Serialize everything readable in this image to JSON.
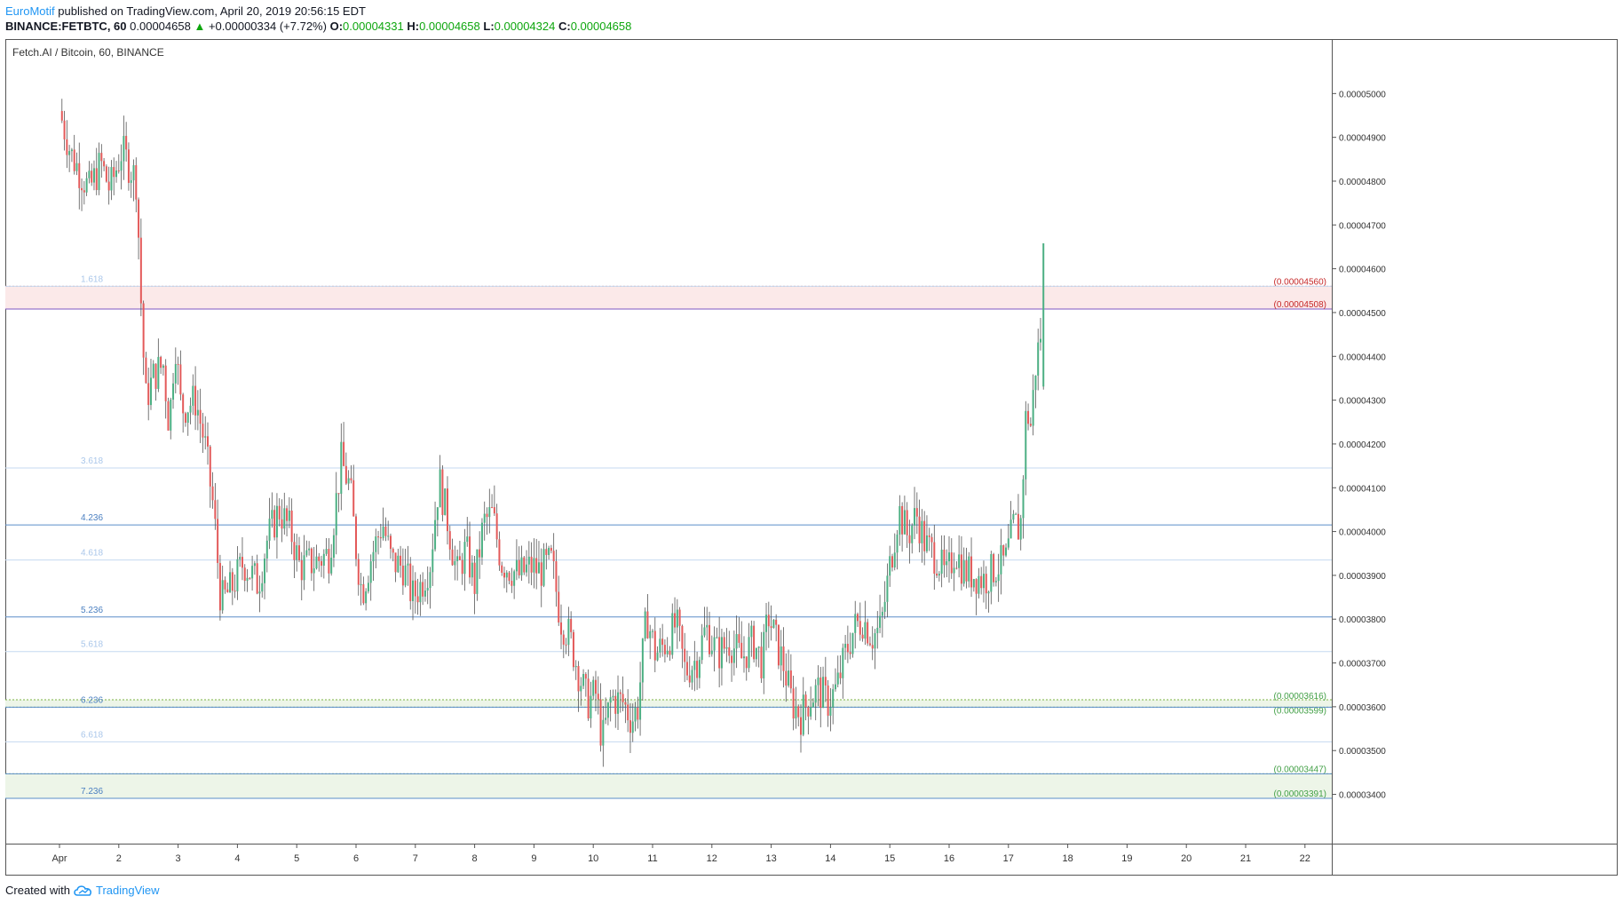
{
  "header": {
    "brand": "EuroMotif",
    "published": "published on TradingView.com, April 20, 2019 20:56:15 EDT",
    "symbol": "BINANCE:FETBTC, 60",
    "last": "0.00004658",
    "change_arrow": "▲",
    "change": "+0.00000334 (+7.72%)",
    "o_label": "O:",
    "o_val": "0.00004331",
    "h_label": "H:",
    "h_val": "0.00004658",
    "l_label": "L:",
    "l_val": "0.00004324",
    "c_label": "C:",
    "c_val": "0.00004658"
  },
  "footer": {
    "created_with": "Created with",
    "logo_text": "TradingView",
    "logo_icon": "tradingview-cloud-icon"
  },
  "chart_data": {
    "type": "candlestick",
    "title": "Fetch.AI / Bitcoin, 60, BINANCE",
    "y_axis_labels": [
      "0.00005000",
      "0.00004900",
      "0.00004800",
      "0.00004700",
      "0.00004600",
      "0.00004500",
      "0.00004400",
      "0.00004300",
      "0.00004200",
      "0.00004100",
      "0.00004000",
      "0.00003900",
      "0.00003800",
      "0.00003700",
      "0.00003600",
      "0.00003500",
      "0.00003400"
    ],
    "ylim": [
      3.32e-05,
      5.1e-05
    ],
    "x_labels": [
      "Apr",
      "2",
      "3",
      "4",
      "5",
      "6",
      "7",
      "8",
      "9",
      "10",
      "11",
      "12",
      "13",
      "14",
      "15",
      "16",
      "17",
      "18",
      "19",
      "20",
      "21",
      "22"
    ],
    "colors": {
      "up": "#4caf83",
      "down": "#e35a5a",
      "fib": "#2962ff",
      "resistance": "#c62828",
      "support": "#43a047"
    },
    "close_path": [
      {
        "x": 0.0,
        "y": 4.96e-05
      },
      {
        "x": 0.2,
        "y": 4.86e-05
      },
      {
        "x": 0.35,
        "y": 4.82e-05
      },
      {
        "x": 0.5,
        "y": 4.78e-05
      },
      {
        "x": 0.7,
        "y": 4.84e-05
      },
      {
        "x": 0.85,
        "y": 4.78e-05
      },
      {
        "x": 1.05,
        "y": 4.87e-05
      },
      {
        "x": 1.2,
        "y": 4.83e-05
      },
      {
        "x": 1.3,
        "y": 4.8e-05
      },
      {
        "x": 1.37,
        "y": 4.54e-05
      },
      {
        "x": 1.45,
        "y": 4.3e-05
      },
      {
        "x": 1.6,
        "y": 4.36e-05
      },
      {
        "x": 1.75,
        "y": 4.38e-05
      },
      {
        "x": 1.85,
        "y": 4.24e-05
      },
      {
        "x": 1.95,
        "y": 4.44e-05
      },
      {
        "x": 2.05,
        "y": 4.28e-05
      },
      {
        "x": 2.3,
        "y": 4.3e-05
      },
      {
        "x": 2.45,
        "y": 4.2e-05
      },
      {
        "x": 2.6,
        "y": 4.05e-05
      },
      {
        "x": 2.72,
        "y": 3.84e-05
      },
      {
        "x": 2.9,
        "y": 3.87e-05
      },
      {
        "x": 3.1,
        "y": 3.93e-05
      },
      {
        "x": 3.35,
        "y": 3.88e-05
      },
      {
        "x": 3.5,
        "y": 3.98e-05
      },
      {
        "x": 3.7,
        "y": 4.05e-05
      },
      {
        "x": 3.9,
        "y": 4e-05
      },
      {
        "x": 4.05,
        "y": 3.92e-05
      },
      {
        "x": 4.3,
        "y": 3.93e-05
      },
      {
        "x": 4.55,
        "y": 3.95e-05
      },
      {
        "x": 4.75,
        "y": 4.16e-05
      },
      {
        "x": 4.9,
        "y": 4.1e-05
      },
      {
        "x": 5.0,
        "y": 3.96e-05
      },
      {
        "x": 5.1,
        "y": 3.86e-05
      },
      {
        "x": 5.25,
        "y": 3.94e-05
      },
      {
        "x": 5.45,
        "y": 4.02e-05
      },
      {
        "x": 5.6,
        "y": 3.93e-05
      },
      {
        "x": 5.8,
        "y": 3.92e-05
      },
      {
        "x": 5.95,
        "y": 3.85e-05
      },
      {
        "x": 6.1,
        "y": 3.88e-05
      },
      {
        "x": 6.25,
        "y": 3.93e-05
      },
      {
        "x": 6.4,
        "y": 4.12e-05
      },
      {
        "x": 6.55,
        "y": 4.02e-05
      },
      {
        "x": 6.7,
        "y": 3.9e-05
      },
      {
        "x": 6.85,
        "y": 3.96e-05
      },
      {
        "x": 7.0,
        "y": 3.88e-05
      },
      {
        "x": 7.15,
        "y": 4.02e-05
      },
      {
        "x": 7.3,
        "y": 4.04e-05
      },
      {
        "x": 7.45,
        "y": 3.93e-05
      },
      {
        "x": 7.55,
        "y": 3.92e-05
      },
      {
        "x": 7.75,
        "y": 3.9e-05
      },
      {
        "x": 7.95,
        "y": 3.92e-05
      },
      {
        "x": 8.1,
        "y": 3.91e-05
      },
      {
        "x": 8.3,
        "y": 3.93e-05
      },
      {
        "x": 8.45,
        "y": 3.8e-05
      },
      {
        "x": 8.6,
        "y": 3.76e-05
      },
      {
        "x": 8.75,
        "y": 3.68e-05
      },
      {
        "x": 8.9,
        "y": 3.61e-05
      },
      {
        "x": 9.05,
        "y": 3.63e-05
      },
      {
        "x": 9.15,
        "y": 3.52e-05
      },
      {
        "x": 9.3,
        "y": 3.62e-05
      },
      {
        "x": 9.5,
        "y": 3.61e-05
      },
      {
        "x": 9.65,
        "y": 3.57e-05
      },
      {
        "x": 9.75,
        "y": 3.6e-05
      },
      {
        "x": 9.9,
        "y": 3.81e-05
      },
      {
        "x": 10.05,
        "y": 3.72e-05
      },
      {
        "x": 10.25,
        "y": 3.75e-05
      },
      {
        "x": 10.4,
        "y": 3.79e-05
      },
      {
        "x": 10.55,
        "y": 3.68e-05
      },
      {
        "x": 10.75,
        "y": 3.71e-05
      },
      {
        "x": 10.9,
        "y": 3.78e-05
      },
      {
        "x": 11.1,
        "y": 3.72e-05
      },
      {
        "x": 11.3,
        "y": 3.75e-05
      },
      {
        "x": 11.5,
        "y": 3.71e-05
      },
      {
        "x": 11.7,
        "y": 3.75e-05
      },
      {
        "x": 11.85,
        "y": 3.7e-05
      },
      {
        "x": 11.95,
        "y": 3.81e-05
      },
      {
        "x": 12.1,
        "y": 3.74e-05
      },
      {
        "x": 12.2,
        "y": 3.7e-05
      },
      {
        "x": 12.35,
        "y": 3.61e-05
      },
      {
        "x": 12.5,
        "y": 3.58e-05
      },
      {
        "x": 12.65,
        "y": 3.62e-05
      },
      {
        "x": 12.8,
        "y": 3.64e-05
      },
      {
        "x": 12.95,
        "y": 3.61e-05
      },
      {
        "x": 13.1,
        "y": 3.64e-05
      },
      {
        "x": 13.25,
        "y": 3.72e-05
      },
      {
        "x": 13.4,
        "y": 3.78e-05
      },
      {
        "x": 13.55,
        "y": 3.8e-05
      },
      {
        "x": 13.7,
        "y": 3.76e-05
      },
      {
        "x": 13.85,
        "y": 3.78e-05
      },
      {
        "x": 14.0,
        "y": 3.92e-05
      },
      {
        "x": 14.15,
        "y": 4.05e-05
      },
      {
        "x": 14.3,
        "y": 3.99e-05
      },
      {
        "x": 14.45,
        "y": 4.04e-05
      },
      {
        "x": 14.6,
        "y": 3.97e-05
      },
      {
        "x": 14.8,
        "y": 3.94e-05
      },
      {
        "x": 14.95,
        "y": 3.89e-05
      },
      {
        "x": 15.1,
        "y": 3.96e-05
      },
      {
        "x": 15.25,
        "y": 3.91e-05
      },
      {
        "x": 15.45,
        "y": 3.9e-05
      },
      {
        "x": 15.6,
        "y": 3.89e-05
      },
      {
        "x": 15.8,
        "y": 3.92e-05
      },
      {
        "x": 15.95,
        "y": 3.93e-05
      },
      {
        "x": 16.1,
        "y": 4.02e-05
      },
      {
        "x": 16.2,
        "y": 4e-05
      },
      {
        "x": 16.3,
        "y": 4.28e-05
      },
      {
        "x": 16.38,
        "y": 4.24e-05
      },
      {
        "x": 16.45,
        "y": 4.37e-05
      },
      {
        "x": 16.55,
        "y": 4.46e-05
      }
    ],
    "annotations": {
      "fib_levels": [
        {
          "label": "1.618",
          "value": 4.56e-05,
          "strong": false
        },
        {
          "label": "3.618",
          "value": 4.145e-05,
          "strong": false
        },
        {
          "label": "4.236",
          "value": 4.015e-05,
          "strong": true
        },
        {
          "label": "4.618",
          "value": 3.935e-05,
          "strong": false
        },
        {
          "label": "5.236",
          "value": 3.805e-05,
          "strong": true
        },
        {
          "label": "5.618",
          "value": 3.726e-05,
          "strong": false
        },
        {
          "label": "6.236",
          "value": 3.599e-05,
          "strong": true
        },
        {
          "label": "6.618",
          "value": 3.52e-05,
          "strong": false
        },
        {
          "label": "7.236",
          "value": 3.391e-05,
          "strong": true
        }
      ],
      "resistance_zone": {
        "top": 4.56e-05,
        "bottom": 4.508e-05,
        "labels": [
          "(0.00004560)",
          "(0.00004508)"
        ]
      },
      "support_zones": [
        {
          "top": 3.616e-05,
          "bottom": 3.599e-05,
          "labels": [
            "(0.00003616)",
            "(0.00003599)"
          ]
        },
        {
          "top": 3.447e-05,
          "bottom": 3.391e-05,
          "labels": [
            "(0.00003447)",
            "(0.00003391)"
          ]
        }
      ],
      "extra_line": 3.447e-05
    }
  }
}
